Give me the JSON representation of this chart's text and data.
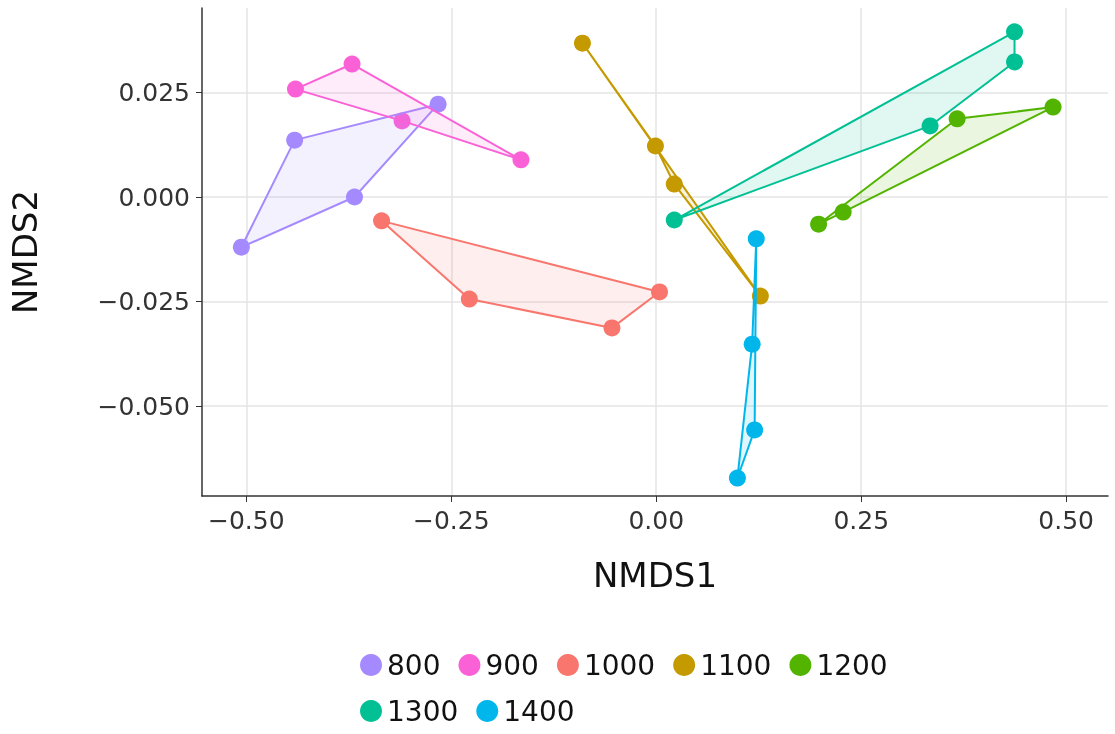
{
  "chart_data": {
    "type": "scatter",
    "xlabel": "NMDS1",
    "ylabel": "NMDS2",
    "xlim": [
      -0.554,
      0.551
    ],
    "ylim": [
      -0.0715,
      0.0452
    ],
    "xticks": [
      {
        "value": -0.5,
        "label": "−0.50"
      },
      {
        "value": -0.25,
        "label": "−0.25"
      },
      {
        "value": 0,
        "label": "0.00"
      },
      {
        "value": 0.25,
        "label": "0.25"
      },
      {
        "value": 0.5,
        "label": "0.50"
      }
    ],
    "yticks": [
      {
        "value": -0.05,
        "label": "−0.050"
      },
      {
        "value": -0.025,
        "label": "−0.025"
      },
      {
        "value": 0,
        "label": "0.000"
      },
      {
        "value": 0.025,
        "label": "0.025"
      }
    ],
    "grid": true,
    "legend": "bottom",
    "marker": "circle",
    "series": [
      {
        "type": "area",
        "marker": "none",
        "color": "#a58aff",
        "x": [
          -0.506,
          -0.441,
          -0.266,
          -0.368
        ],
        "values": [
          -0.012,
          0.0136,
          0.0222,
          0.0
        ]
      },
      {
        "type": "area",
        "marker": "none",
        "color": "#fb61d7",
        "x": [
          -0.44,
          -0.371,
          -0.165,
          -0.31
        ],
        "values": [
          0.0258,
          0.0318,
          0.0089,
          0.0182
        ]
      },
      {
        "type": "area",
        "marker": "none",
        "color": "#f8766d",
        "x": [
          -0.335,
          0.004,
          -0.054,
          -0.228
        ],
        "values": [
          -0.0057,
          -0.0227,
          -0.0313,
          -0.0244
        ]
      },
      {
        "type": "area",
        "marker": "none",
        "color": "#c49a00",
        "x": [
          -0.09,
          0.127,
          0.022,
          -0.001
        ],
        "values": [
          0.0368,
          -0.0237,
          0.0031,
          0.0122
        ]
      },
      {
        "type": "area",
        "marker": "none",
        "color": "#53b400",
        "x": [
          0.198,
          0.367,
          0.484,
          0.228
        ],
        "values": [
          -0.0065,
          0.0187,
          0.0215,
          -0.0036
        ]
      },
      {
        "type": "area",
        "marker": "none",
        "color": "#00c094",
        "x": [
          0.022,
          0.437,
          0.437,
          0.334
        ],
        "values": [
          -0.0055,
          0.0395,
          0.0323,
          0.017
        ]
      },
      {
        "type": "area",
        "marker": "none",
        "color": "#00b6eb",
        "x": [
          0.122,
          0.12,
          0.099,
          0.117
        ],
        "values": [
          -0.01,
          -0.0557,
          -0.0672,
          -0.0352
        ]
      },
      {
        "name": "800",
        "color": "#a58aff",
        "x": [
          -0.506,
          -0.441,
          -0.266,
          -0.368
        ],
        "values": [
          -0.012,
          0.0136,
          0.0222,
          0.0
        ]
      },
      {
        "name": "900",
        "color": "#fb61d7",
        "x": [
          -0.44,
          -0.371,
          -0.165,
          -0.31
        ],
        "values": [
          0.0258,
          0.0318,
          0.0089,
          0.0182
        ]
      },
      {
        "name": "1000",
        "color": "#f8766d",
        "x": [
          -0.335,
          -0.228,
          -0.054,
          0.004
        ],
        "values": [
          -0.0057,
          -0.0244,
          -0.0313,
          -0.0227
        ]
      },
      {
        "name": "1100",
        "color": "#c49a00",
        "x": [
          -0.09,
          -0.001,
          0.022,
          0.127
        ],
        "values": [
          0.0368,
          0.0122,
          0.0031,
          -0.0237
        ]
      },
      {
        "name": "1200",
        "color": "#53b400",
        "x": [
          0.198,
          0.228,
          0.367,
          0.484
        ],
        "values": [
          -0.0065,
          -0.0036,
          0.0187,
          0.0215
        ]
      },
      {
        "name": "1300",
        "color": "#00c094",
        "x": [
          0.022,
          0.334,
          0.437,
          0.437
        ],
        "values": [
          -0.0055,
          0.017,
          0.0323,
          0.0395
        ]
      },
      {
        "name": "1400",
        "color": "#00b6eb",
        "x": [
          0.122,
          0.117,
          0.12,
          0.099
        ],
        "values": [
          -0.01,
          -0.0352,
          -0.0557,
          -0.0672
        ]
      }
    ]
  }
}
